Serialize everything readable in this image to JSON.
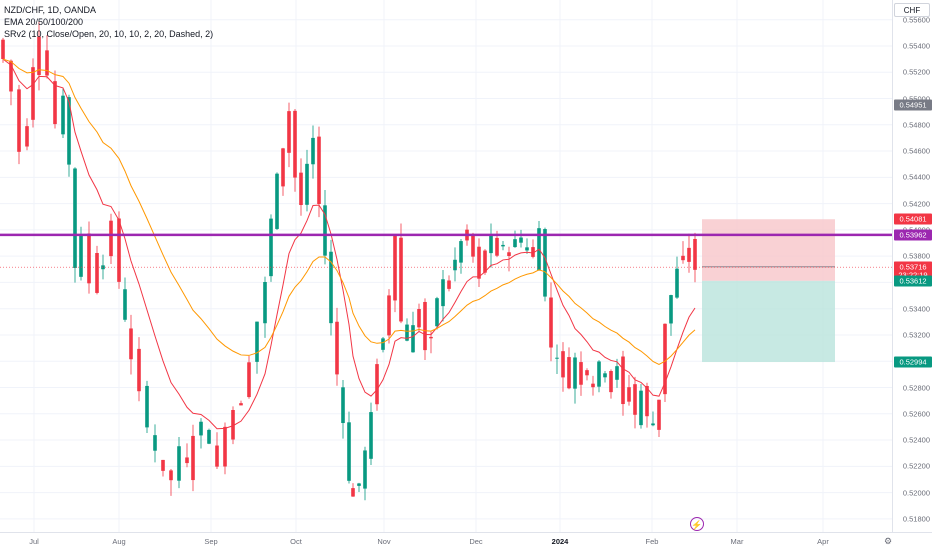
{
  "legend": {
    "symbol_line": "NZD/CHF, 1D, OANDA",
    "ema_line": "EMA 20/50/100/200",
    "srv_line": "SRv2 (10, Close/Open, 20, 10, 10, 2, 20, Dashed, 2)"
  },
  "price_axis": {
    "currency": "CHF",
    "ticks": [
      "0.55600",
      "0.55400",
      "0.55200",
      "0.55000",
      "0.54800",
      "0.54600",
      "0.54400",
      "0.54200",
      "0.54000",
      "0.53800",
      "0.53600",
      "0.53400",
      "0.53200",
      "0.53000",
      "0.52800",
      "0.52600",
      "0.52400",
      "0.52200",
      "0.52000",
      "0.51800"
    ]
  },
  "price_tags": [
    {
      "label": "0.54951",
      "value": 0.54951,
      "color": "#787b86"
    },
    {
      "label": "0.54081",
      "value": 0.54081,
      "color": "#f23645"
    },
    {
      "label": "0.53962",
      "value": 0.53962,
      "color": "#9c27b0"
    },
    {
      "label": "0.53719",
      "value": 0.53719,
      "color": "#787b86"
    },
    {
      "label": "0.53716",
      "value": 0.53716,
      "color": "#f23645"
    },
    {
      "label": "23:22:19",
      "value": 0.5366,
      "color": "#f23645"
    },
    {
      "label": "0.53612",
      "value": 0.53612,
      "color": "#089981"
    },
    {
      "label": "0.52994",
      "value": 0.52994,
      "color": "#089981"
    }
  ],
  "time_axis": {
    "labels": [
      {
        "text": "Jul",
        "bold": false
      },
      {
        "text": "Aug",
        "bold": false
      },
      {
        "text": "Sep",
        "bold": false
      },
      {
        "text": "Oct",
        "bold": false
      },
      {
        "text": "Nov",
        "bold": false
      },
      {
        "text": "Dec",
        "bold": false
      },
      {
        "text": "2024",
        "bold": true
      },
      {
        "text": "Feb",
        "bold": false
      },
      {
        "text": "Mar",
        "bold": false
      },
      {
        "text": "Apr",
        "bold": false
      }
    ]
  },
  "chart_data": {
    "type": "candlestick",
    "symbol": "NZD/CHF",
    "ylim": [
      0.517,
      0.5575
    ],
    "horizontal_line": 0.53962,
    "position": {
      "stop": 0.54081,
      "entry": 0.53612,
      "target": 0.52994
    },
    "colors": {
      "up": "#089981",
      "down": "#f23645",
      "level": "#9c27b0",
      "ema_fast": "#f23645",
      "ema_slow": "#ff9800",
      "risk": "#f7c5c9",
      "reward": "#b9e3dc"
    }
  }
}
